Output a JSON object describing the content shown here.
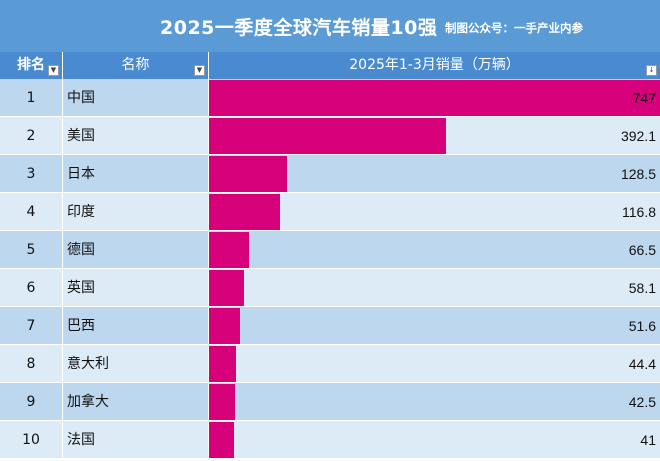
{
  "title": {
    "main": "2025一季度全球汽车销量10强",
    "sub": "制图公众号：一手产业内参"
  },
  "headers": {
    "rank": "排名",
    "name": "名称",
    "sales": "2025年1-3月销量（万辆）",
    "filter_icon": "chevron-down-icon",
    "sort_icon": "sort-descending-icon"
  },
  "colors": {
    "title_bg": "#5a9bd5",
    "header_bg": "#4a8ad0",
    "row_odd": "#bdd7ee",
    "row_even": "#ddebf7",
    "bar": "#d6007b"
  },
  "chart_data": {
    "type": "bar",
    "title": "2025一季度全球汽车销量10强",
    "subtitle": "制图公众号：一手产业内参",
    "xlabel": "2025年1-3月销量（万辆）",
    "ylabel": "名称",
    "orientation": "horizontal",
    "ranks": [
      "1",
      "2",
      "3",
      "4",
      "5",
      "6",
      "7",
      "8",
      "9",
      "10"
    ],
    "categories": [
      "中国",
      "美国",
      "日本",
      "印度",
      "德国",
      "英国",
      "巴西",
      "意大利",
      "加拿大",
      "法国"
    ],
    "values": [
      747,
      392.1,
      128.5,
      116.8,
      66.5,
      58.1,
      51.6,
      44.4,
      42.5,
      41
    ],
    "value_labels": [
      "747",
      "392.1",
      "128.5",
      "116.8",
      "66.5",
      "58.1",
      "51.6",
      "44.4",
      "42.5",
      "41"
    ],
    "xlim": [
      0,
      747
    ]
  }
}
